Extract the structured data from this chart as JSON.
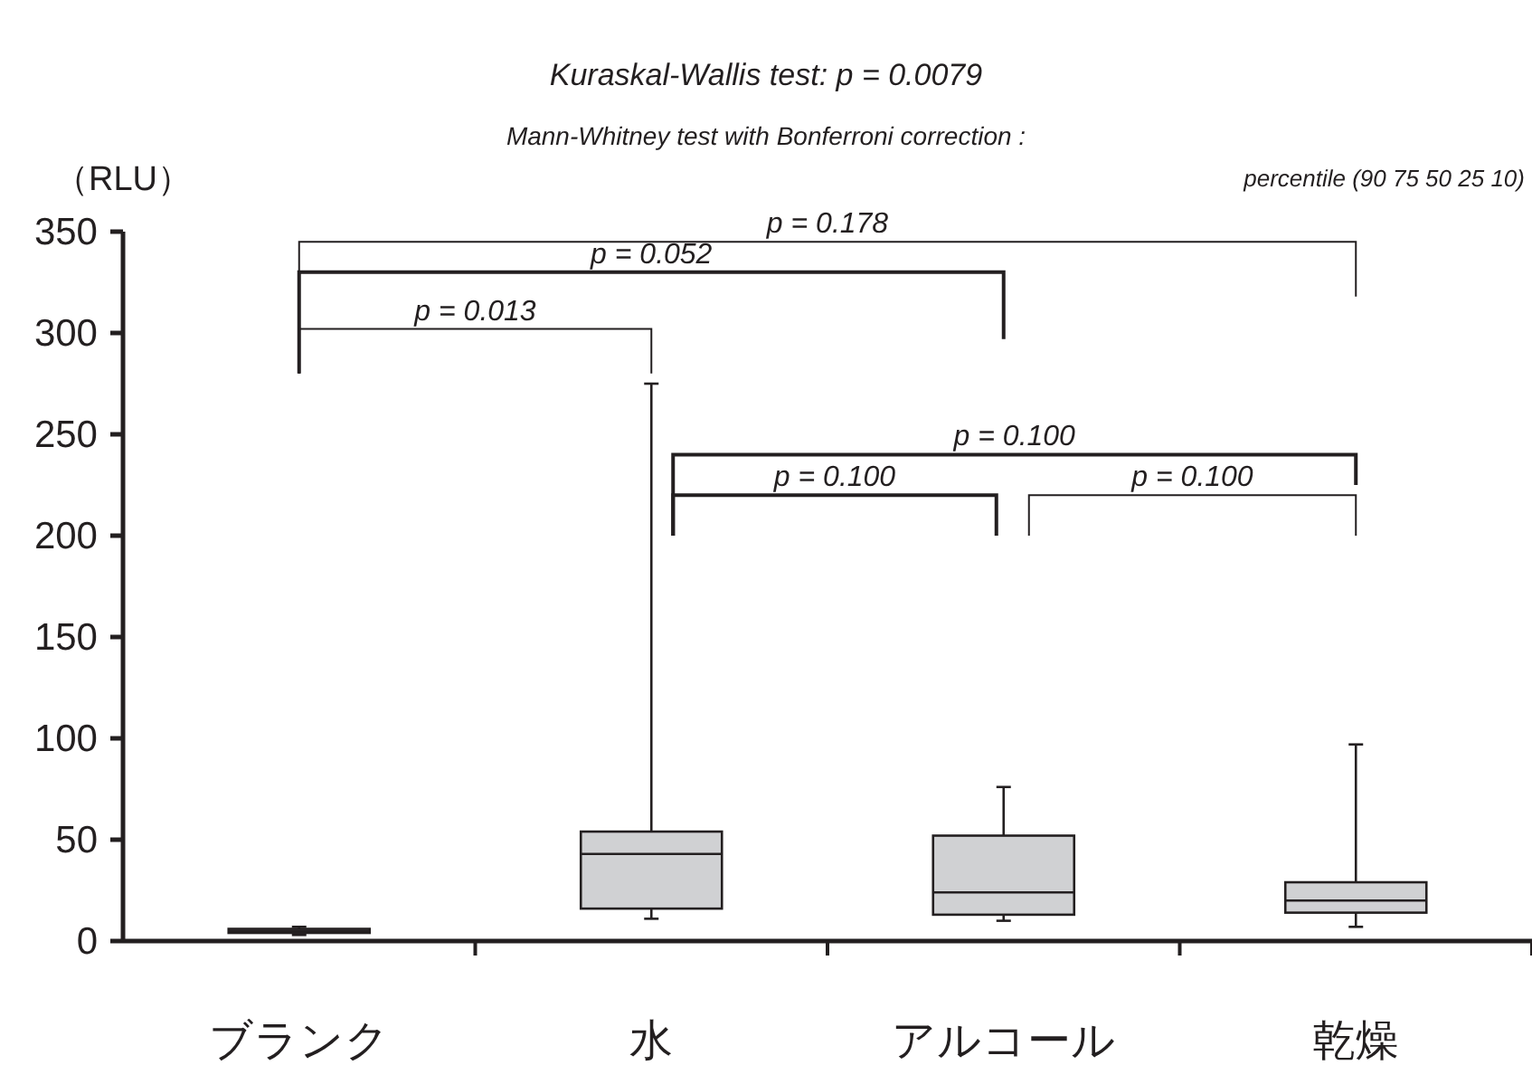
{
  "chart_data": {
    "type": "box",
    "title": "*Kuraskal-Wallis test: p = 0.0079*",
    "subtitle": "*Mann-Whitney test with Bonferroni correction :*",
    "ylabel": "（RLU）",
    "categories": [
      "ブランク",
      "水",
      "アルコール",
      "乾燥"
    ],
    "boxes": [
      {
        "low": 3,
        "q1": 4,
        "median": 5,
        "q3": 6,
        "high": 7
      },
      {
        "low": 11,
        "q1": 16,
        "median": 43,
        "q3": 54,
        "high": 275
      },
      {
        "low": 10,
        "q1": 13,
        "median": 24,
        "q3": 52,
        "high": 76
      },
      {
        "low": 7,
        "q1": 14,
        "median": 20,
        "q3": 29,
        "high": 97
      }
    ],
    "color": "#d0d1d3",
    "ylim": [
      0,
      350
    ],
    "yticks": [
      0,
      50,
      100,
      150,
      200,
      250,
      300,
      350
    ],
    "annotations": [
      "*p = 0.178*",
      "*p = 0.052*",
      "*p = 0.013*",
      "*p = 0.100*",
      "*p = 0.100*",
      "*p = 0.100*",
      "*percentile (90 75 50 25 10)*"
    ]
  }
}
